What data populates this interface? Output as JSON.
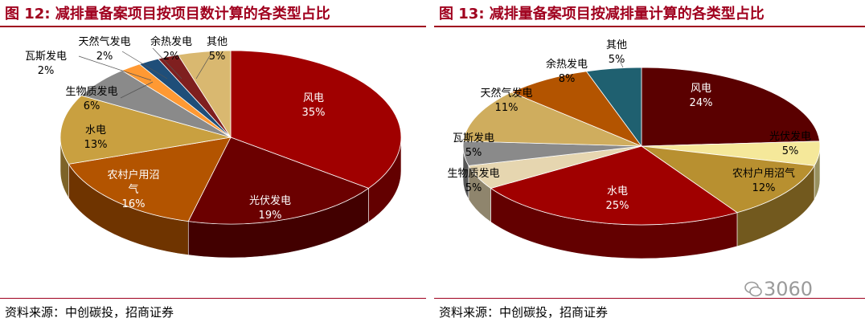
{
  "left": {
    "title": "图 12:  减排量备案项目按项目数计算的各类型占比",
    "source": "资料来源：中创碳投，招商证券"
  },
  "right": {
    "title": "图 13:  减排量备案项目按减排量计算的各类型占比",
    "source": "资料来源：中创碳投，招商证券"
  },
  "watermark": "3060",
  "chart_data": [
    {
      "type": "pie",
      "title": "图 12:  减排量备案项目按项目数计算的各类型占比",
      "slices": [
        {
          "name": "风电",
          "value": 35,
          "label": "35%",
          "color": "#a00000"
        },
        {
          "name": "光伏发电",
          "value": 19,
          "label": "19%",
          "color": "#6b0000"
        },
        {
          "name": "农村户用沼气",
          "value": 16,
          "label": "16%",
          "color": "#b35400"
        },
        {
          "name": "水电",
          "value": 13,
          "label": "13%",
          "color": "#c9a040"
        },
        {
          "name": "生物质发电",
          "value": 6,
          "label": "6%",
          "color": "#8a8a8a"
        },
        {
          "name": "瓦斯发电",
          "value": 2,
          "label": "2%",
          "color": "#ff9933"
        },
        {
          "name": "天然气发电",
          "value": 2,
          "label": "2%",
          "color": "#1f4e79"
        },
        {
          "name": "余热发电",
          "value": 2,
          "label": "2%",
          "color": "#7f1f1f"
        },
        {
          "name": "其他",
          "value": 5,
          "label": "5%",
          "color": "#d9b870"
        }
      ]
    },
    {
      "type": "pie",
      "title": "图 13:  减排量备案项目按减排量计算的各类型占比",
      "slices": [
        {
          "name": "风电",
          "value": 24,
          "label": "24%",
          "color": "#5a0000"
        },
        {
          "name": "光伏发电",
          "value": 5,
          "label": "5%",
          "color": "#f5e89a"
        },
        {
          "name": "农村户用沼气",
          "value": 12,
          "label": "12%",
          "color": "#b89030"
        },
        {
          "name": "水电",
          "value": 25,
          "label": "25%",
          "color": "#a00000"
        },
        {
          "name": "生物质发电",
          "value": 5,
          "label": "5%",
          "color": "#e6d6b0"
        },
        {
          "name": "瓦斯发电",
          "value": 5,
          "label": "5%",
          "color": "#8a8a8a"
        },
        {
          "name": "天然气发电",
          "value": 11,
          "label": "11%",
          "color": "#cfad5e"
        },
        {
          "name": "余热发电",
          "value": 8,
          "label": "8%",
          "color": "#b35400"
        },
        {
          "name": "其他",
          "value": 5,
          "label": "5%",
          "color": "#1f6070"
        }
      ]
    }
  ]
}
